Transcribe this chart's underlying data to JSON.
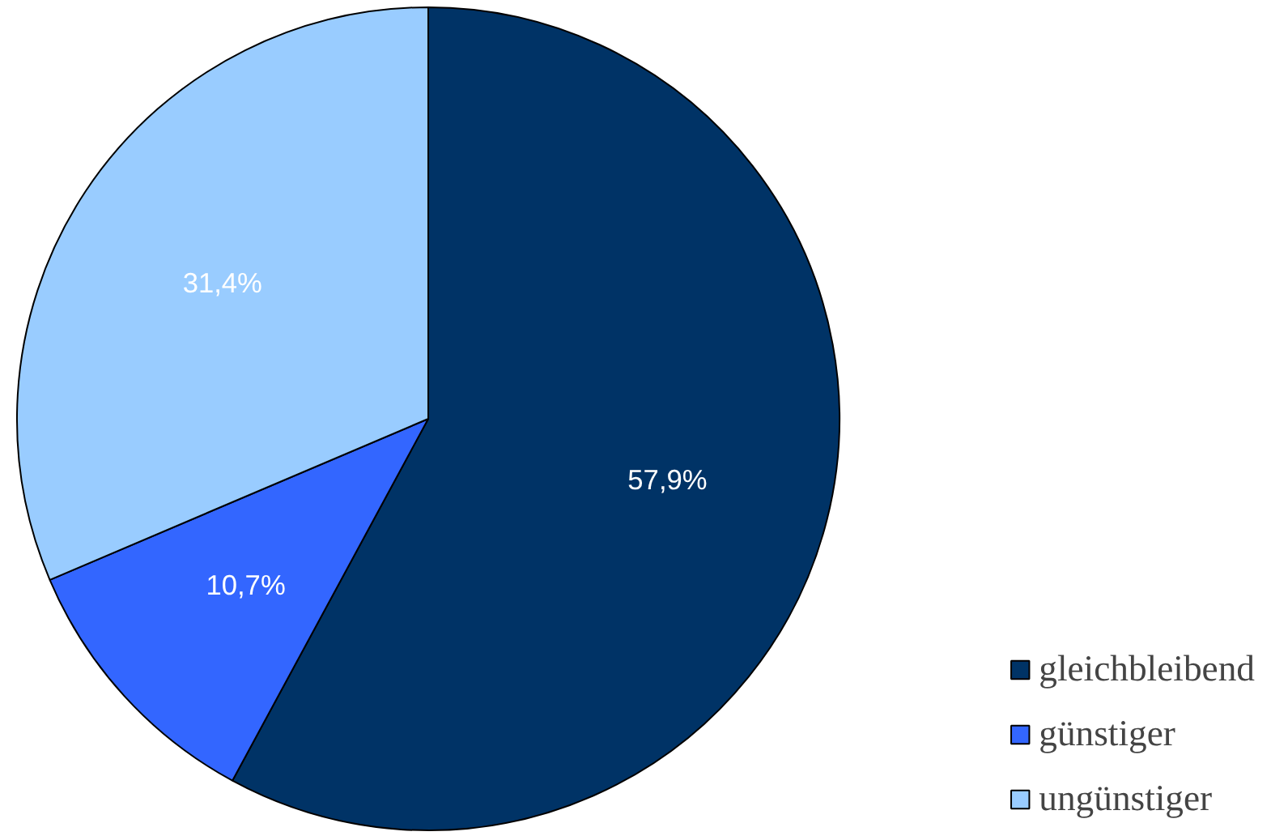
{
  "chart_data": {
    "type": "pie",
    "categories": [
      "gleichbleibend",
      "günstiger",
      "ungünstiger"
    ],
    "values": [
      57.9,
      10.7,
      31.4
    ],
    "colors": [
      "#003366",
      "#3366ff",
      "#99ccff"
    ],
    "value_labels": [
      "57,9%",
      "10,7%",
      "31,4%"
    ],
    "legend": "bottom right"
  }
}
